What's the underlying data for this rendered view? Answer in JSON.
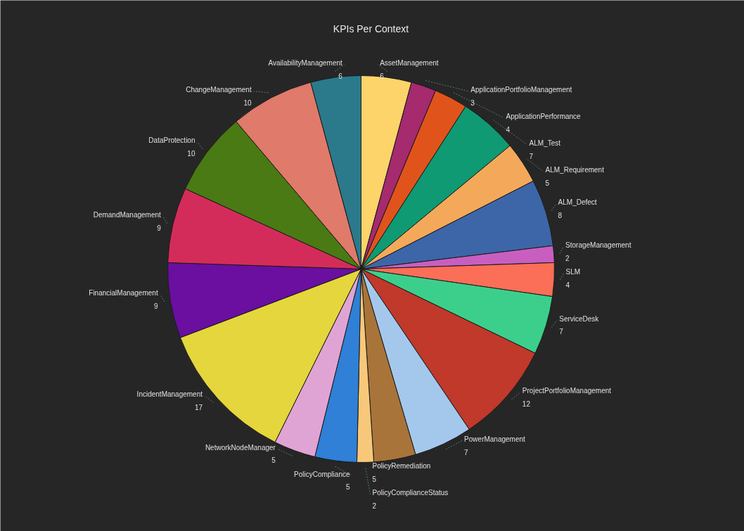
{
  "chart_data": {
    "type": "pie",
    "title": "KPIs Per Context",
    "categories": [
      "AssetManagement",
      "ApplicationPortfolioManagement",
      "ApplicationPerformance",
      "ALM_Test",
      "ALM_Requirement",
      "ALM_Defect",
      "StorageManagement",
      "SLM",
      "ServiceDesk",
      "ProjectPortfolioManagement",
      "PowerManagement",
      "PolicyRemediation",
      "PolicyComplianceStatus",
      "PolicyCompliance",
      "NetworkNodeManager",
      "IncidentManagement",
      "FinancialManagement",
      "DemandManagement",
      "DataProtection",
      "ChangeManagement",
      "AvailabilityManagement"
    ],
    "values": [
      6,
      3,
      4,
      7,
      5,
      8,
      2,
      4,
      7,
      12,
      7,
      5,
      2,
      5,
      5,
      17,
      9,
      9,
      10,
      10,
      6
    ],
    "colors": [
      "#fdd46a",
      "#a52a6e",
      "#e0541c",
      "#0f9a73",
      "#f4a95a",
      "#3d66a8",
      "#c85fc0",
      "#fb6e58",
      "#3ccf8c",
      "#c0392b",
      "#a4c8ec",
      "#a9743a",
      "#f8c87a",
      "#2f80d6",
      "#e0a4d4",
      "#e4d63c",
      "#6a0fa0",
      "#d42c5a",
      "#4a7a14",
      "#e07a6a",
      "#2a7a8c"
    ],
    "data_labels": true,
    "legend": false
  }
}
